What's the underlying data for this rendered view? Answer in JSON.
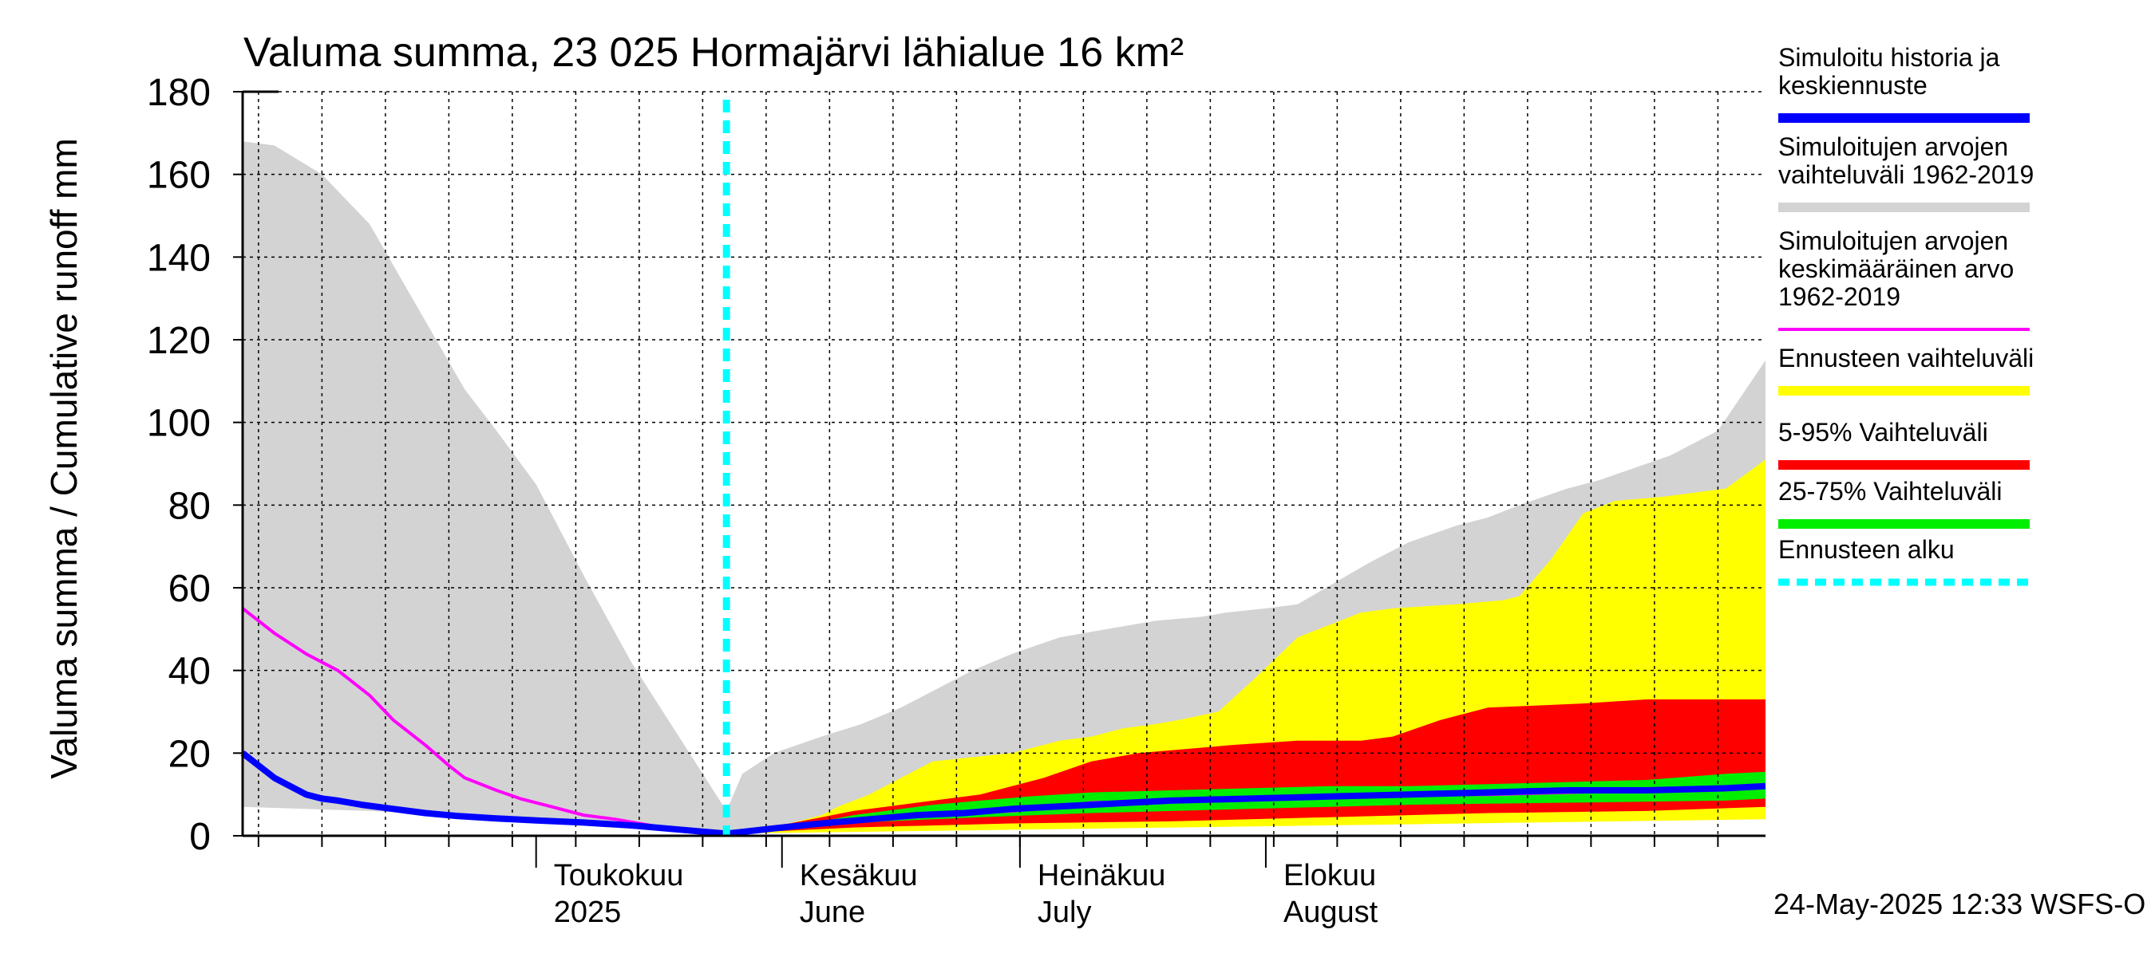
{
  "chart_data": {
    "type": "area",
    "title": "Valuma summa, 23 025 Hormajärvi lähialue 16 km²",
    "ylabel": "Valuma summa / Cumulative runoff    mm",
    "ylim": [
      0,
      180
    ],
    "yticks": [
      0,
      20,
      40,
      60,
      80,
      100,
      120,
      140,
      160,
      180
    ],
    "grid": true,
    "legend_position": "right",
    "x_range_days": [
      -37,
      155
    ],
    "x_start_date": "2025-04-01",
    "month_labels": [
      {
        "fi": "Toukokuu",
        "en": "2025",
        "day": 0
      },
      {
        "fi": "Kesäkuu",
        "en": "June",
        "day": 31
      },
      {
        "fi": "Heinäkuu",
        "en": "July",
        "day": 61
      },
      {
        "fi": "Elokuu",
        "en": "August",
        "day": 92
      }
    ],
    "forecast_start_day": 24,
    "timestamp": "24-May-2025 12:33 WSFS-O",
    "colors": {
      "history_range": "#d3d3d3",
      "mean": "#ff00ff",
      "simulated": "#0000ff",
      "forecast_range": "#ffff00",
      "p5_95": "#ff0000",
      "p25_75": "#00ee00",
      "forecast_start": "#00ffff"
    },
    "legend": [
      {
        "lines": [
          "Simuloitu historia ja",
          "keskiennuste"
        ],
        "color": "#0000ff",
        "style": "solid"
      },
      {
        "lines": [
          "Simuloitujen arvojen",
          "vaihteluväli 1962-2019"
        ],
        "color": "#d3d3d3",
        "style": "solid"
      },
      {
        "lines": [
          "Simuloitujen arvojen",
          "keskimääräinen arvo",
          "   1962-2019"
        ],
        "color": "#ff00ff",
        "style": "thin"
      },
      {
        "lines": [
          "Ennusteen vaihteluväli"
        ],
        "color": "#ffff00",
        "style": "solid"
      },
      {
        "lines": [
          "5-95% Vaihteluväli"
        ],
        "color": "#ff0000",
        "style": "solid"
      },
      {
        "lines": [
          "25-75% Vaihteluväli"
        ],
        "color": "#00ee00",
        "style": "solid"
      },
      {
        "lines": [
          "Ennusteen alku"
        ],
        "color": "#00ffff",
        "style": "dashed"
      }
    ],
    "series": [
      {
        "name": "Simuloitujen arvojen vaihteluväli 1962-2019 (ylä)",
        "x": [
          -37,
          -33,
          -27,
          -21,
          -15,
          -9,
          -5,
          0,
          6,
          12,
          18,
          24,
          26,
          30,
          36,
          41,
          46,
          55,
          60,
          66,
          72,
          78,
          84,
          87,
          92,
          96,
          105,
          110,
          116,
          120,
          124,
          130,
          134,
          137,
          143,
          149,
          155
        ],
        "y": [
          168,
          167,
          160,
          148,
          128,
          108,
          98,
          85,
          63,
          42,
          24,
          6,
          15,
          20,
          24,
          27,
          31,
          40,
          44,
          48,
          50,
          52,
          53,
          54,
          55,
          56,
          66,
          71,
          75,
          77,
          80,
          84,
          86,
          88,
          92,
          98,
          115
        ]
      },
      {
        "name": "Simuloitujen arvojen vaihteluväli 1962-2019 (ala)",
        "x": [
          -37,
          -21,
          -9,
          0,
          12,
          18,
          24,
          36,
          72,
          155
        ],
        "y": [
          7,
          6,
          5,
          4,
          2,
          1,
          0.5,
          1.5,
          2.5,
          4
        ]
      },
      {
        "name": "Ennusteen vaihteluväli (ylä)",
        "x": [
          24,
          28,
          32,
          36,
          38,
          42,
          46,
          50,
          55,
          60,
          64,
          66,
          70,
          74,
          78,
          81,
          86,
          90,
          96,
          104,
          108,
          112,
          116,
          122,
          124,
          128,
          132,
          136,
          142,
          150,
          155
        ],
        "y": [
          0.5,
          2,
          3,
          5,
          7,
          10,
          14,
          18,
          19,
          20,
          22,
          23,
          24,
          26,
          27,
          28,
          30,
          37,
          48,
          54,
          55,
          55.5,
          56,
          57,
          58,
          67,
          78,
          81,
          82,
          84,
          91
        ]
      },
      {
        "name": "Ennusteen vaihteluväli (ala)",
        "x": [
          24,
          155
        ],
        "y": [
          0.5,
          4
        ]
      },
      {
        "name": "5-95% Vaihteluväli (ylä)",
        "x": [
          24,
          28,
          32,
          36,
          40,
          44,
          48,
          52,
          56,
          60,
          64,
          70,
          76,
          82,
          88,
          96,
          100,
          104,
          108,
          114,
          120,
          126,
          132,
          140,
          155
        ],
        "y": [
          0.5,
          2,
          3,
          4.5,
          6,
          7,
          8,
          9,
          10,
          12,
          14,
          18,
          20,
          21,
          22,
          23,
          23,
          23,
          24,
          28,
          31,
          31.5,
          32,
          33,
          33
        ]
      },
      {
        "name": "5-95% Vaihteluväli (ala)",
        "x": [
          24,
          40,
          60,
          80,
          100,
          120,
          140,
          155
        ],
        "y": [
          0.5,
          2,
          3,
          3.5,
          4.5,
          5.5,
          6,
          7
        ]
      },
      {
        "name": "25-75% Vaihteluväli (ylä)",
        "x": [
          24,
          30,
          36,
          40,
          44,
          50,
          56,
          62,
          70,
          80,
          90,
          100,
          110,
          120,
          130,
          140,
          150,
          155
        ],
        "y": [
          0.5,
          2,
          3.5,
          5,
          6,
          7.5,
          8.5,
          9.5,
          10.5,
          11,
          11.5,
          12,
          12,
          12.5,
          13,
          13.5,
          15,
          15.5
        ]
      },
      {
        "name": "25-75% Vaihteluväli (ala)",
        "x": [
          24,
          30,
          36,
          44,
          56,
          70,
          90,
          110,
          130,
          150,
          155
        ],
        "y": [
          0.5,
          1.5,
          2.5,
          3.5,
          4.5,
          5.5,
          6.5,
          7.5,
          8,
          8.5,
          9
        ]
      },
      {
        "name": "Simuloitujen arvojen keskimääräinen arvo 1962-2019",
        "x": [
          -37,
          -33,
          -29,
          -25,
          -21,
          -18,
          -14,
          -11,
          -9,
          -5,
          -2,
          2,
          6,
          10,
          16,
          20,
          24,
          30,
          40,
          50,
          60,
          66,
          70,
          80,
          90,
          100,
          110,
          120,
          130,
          140,
          150,
          155
        ],
        "y": [
          55,
          49,
          44,
          40,
          34,
          28,
          22,
          17,
          14,
          11,
          9,
          7,
          5,
          4,
          2,
          1.5,
          0.5,
          2,
          3.5,
          5,
          6,
          7,
          8,
          8.5,
          9,
          9.5,
          10,
          10,
          10.5,
          11,
          11.5,
          12
        ]
      },
      {
        "name": "Simuloitu historia ja keskiennuste",
        "x": [
          -37,
          -35,
          -33,
          -31,
          -29,
          -27,
          -25,
          -22,
          -18,
          -14,
          -10,
          -5,
          0,
          6,
          12,
          18,
          24,
          30,
          36,
          42,
          48,
          54,
          60,
          70,
          80,
          90,
          100,
          110,
          120,
          130,
          140,
          150,
          155
        ],
        "y": [
          20,
          17,
          14,
          12,
          10,
          9,
          8.5,
          7.5,
          6.5,
          5.5,
          4.8,
          4.2,
          3.7,
          3.2,
          2.5,
          1.5,
          0.5,
          1.8,
          3,
          4,
          5,
          5.5,
          6.5,
          7.5,
          8.5,
          9,
          9.5,
          10,
          10.5,
          11,
          11,
          11.5,
          12
        ]
      }
    ]
  }
}
